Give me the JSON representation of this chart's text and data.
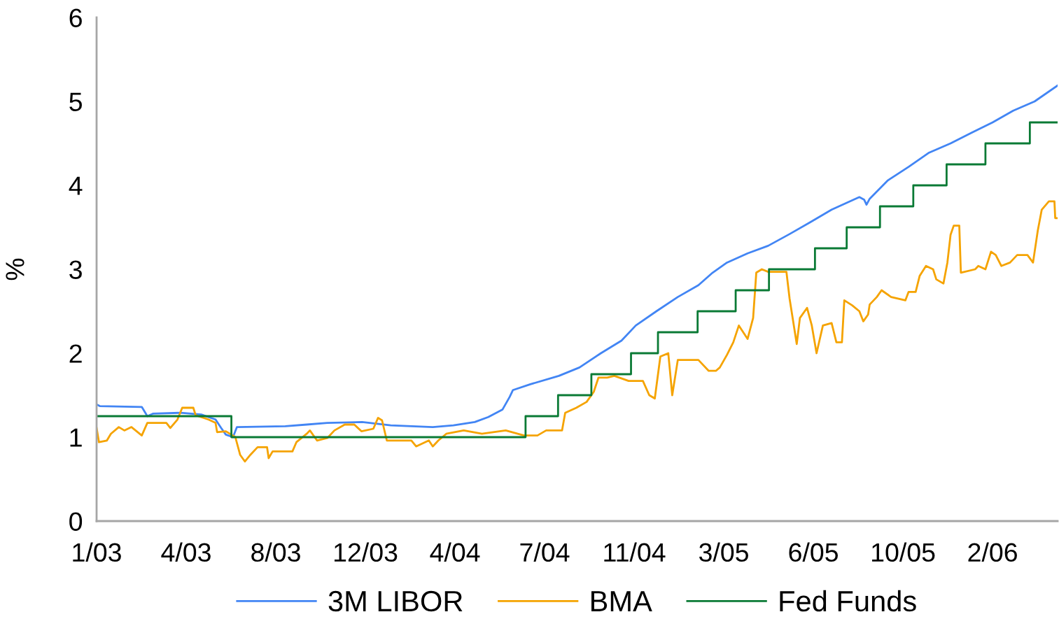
{
  "chart_data": {
    "type": "line",
    "ylabel": "%",
    "xlim": [
      "2003-01-06",
      "2006-05-02"
    ],
    "xticks": [
      {
        "value": "2003-01-06",
        "label": "1/03"
      },
      {
        "value": "2003-04-29",
        "label": "4/03"
      },
      {
        "value": "2003-08-20",
        "label": "8/03"
      },
      {
        "value": "2003-12-11",
        "label": "12/03"
      },
      {
        "value": "2004-04-02",
        "label": "4/04"
      },
      {
        "value": "2004-07-24",
        "label": "7/04"
      },
      {
        "value": "2004-11-14",
        "label": "11/04"
      },
      {
        "value": "2005-03-07",
        "label": "3/05"
      },
      {
        "value": "2005-06-28",
        "label": "6/05"
      },
      {
        "value": "2005-10-19",
        "label": "10/05"
      },
      {
        "value": "2006-02-09",
        "label": "2/06"
      }
    ],
    "ylim": [
      0,
      6
    ],
    "yticks": [
      0,
      1,
      2,
      3,
      4,
      5,
      6
    ],
    "grid": false,
    "legend": "bottom",
    "series": [
      {
        "name": "3M LIBOR",
        "color": "#4285f4",
        "x": [
          "2003-01-06",
          "2003-01-10",
          "2003-03-04",
          "2003-03-11",
          "2003-03-18",
          "2003-04-22",
          "2003-05-18",
          "2003-06-05",
          "2003-06-12",
          "2003-06-18",
          "2003-06-27",
          "2003-07-02",
          "2003-09-01",
          "2003-09-28",
          "2003-10-24",
          "2003-12-07",
          "2004-01-12",
          "2004-03-05",
          "2004-03-31",
          "2004-04-27",
          "2004-05-14",
          "2004-06-01",
          "2004-06-10",
          "2004-06-14",
          "2004-07-06",
          "2004-08-11",
          "2004-09-06",
          "2004-10-03",
          "2004-10-29",
          "2004-11-16",
          "2004-12-12",
          "2005-01-08",
          "2005-02-03",
          "2005-02-21",
          "2005-03-11",
          "2005-04-06",
          "2005-05-02",
          "2005-05-29",
          "2005-06-24",
          "2005-07-21",
          "2005-08-25",
          "2005-08-31",
          "2005-09-03",
          "2005-09-07",
          "2005-09-30",
          "2005-10-26",
          "2005-11-21",
          "2005-12-18",
          "2006-01-14",
          "2006-02-09",
          "2006-03-07",
          "2006-04-03",
          "2006-05-02"
        ],
        "values": [
          1.39,
          1.37,
          1.36,
          1.25,
          1.28,
          1.29,
          1.27,
          1.21,
          1.11,
          1.03,
          1.0,
          1.12,
          1.13,
          1.15,
          1.17,
          1.18,
          1.14,
          1.12,
          1.14,
          1.18,
          1.24,
          1.33,
          1.48,
          1.56,
          1.63,
          1.73,
          1.83,
          2.0,
          2.15,
          2.33,
          2.5,
          2.67,
          2.81,
          2.96,
          3.08,
          3.19,
          3.28,
          3.42,
          3.56,
          3.71,
          3.86,
          3.83,
          3.77,
          3.84,
          4.06,
          4.22,
          4.39,
          4.5,
          4.63,
          4.75,
          4.89,
          5.0,
          5.19
        ]
      },
      {
        "name": "BMA",
        "color": "#f5a300",
        "x": [
          "2003-01-06",
          "2003-01-09",
          "2003-01-19",
          "2003-01-24",
          "2003-02-03",
          "2003-02-10",
          "2003-02-19",
          "2003-03-04",
          "2003-03-11",
          "2003-04-04",
          "2003-04-09",
          "2003-04-18",
          "2003-04-24",
          "2003-05-08",
          "2003-05-11",
          "2003-05-27",
          "2003-06-05",
          "2003-06-07",
          "2003-06-18",
          "2003-06-30",
          "2003-07-06",
          "2003-07-12",
          "2003-07-19",
          "2003-07-28",
          "2003-08-09",
          "2003-08-11",
          "2003-08-16",
          "2003-09-10",
          "2003-09-15",
          "2003-09-28",
          "2003-10-02",
          "2003-10-11",
          "2003-10-24",
          "2003-11-02",
          "2003-11-15",
          "2003-11-27",
          "2003-12-06",
          "2003-12-21",
          "2003-12-27",
          "2004-01-01",
          "2004-01-07",
          "2004-02-07",
          "2004-02-13",
          "2004-02-29",
          "2004-03-05",
          "2004-03-12",
          "2004-03-22",
          "2004-04-13",
          "2004-05-06",
          "2004-06-05",
          "2004-06-28",
          "2004-07-15",
          "2004-07-26",
          "2004-08-15",
          "2004-08-19",
          "2004-09-02",
          "2004-09-15",
          "2004-09-24",
          "2004-09-30",
          "2004-10-11",
          "2004-10-20",
          "2004-11-07",
          "2004-11-25",
          "2004-12-03",
          "2004-12-10",
          "2004-12-17",
          "2004-12-27",
          "2005-01-01",
          "2005-01-08",
          "2005-01-25",
          "2005-02-03",
          "2005-02-16",
          "2005-02-25",
          "2005-03-02",
          "2005-03-11",
          "2005-03-19",
          "2005-03-26",
          "2005-04-06",
          "2005-04-13",
          "2005-04-17",
          "2005-04-24",
          "2005-05-02",
          "2005-05-25",
          "2005-05-29",
          "2005-06-07",
          "2005-06-11",
          "2005-06-20",
          "2005-06-26",
          "2005-07-02",
          "2005-07-10",
          "2005-07-21",
          "2005-07-27",
          "2005-08-03",
          "2005-08-06",
          "2005-08-16",
          "2005-08-25",
          "2005-08-30",
          "2005-09-05",
          "2005-09-07",
          "2005-09-16",
          "2005-09-22",
          "2005-10-04",
          "2005-10-22",
          "2005-10-26",
          "2005-11-04",
          "2005-11-09",
          "2005-11-17",
          "2005-11-26",
          "2005-11-30",
          "2005-12-09",
          "2005-12-14",
          "2005-12-18",
          "2005-12-22",
          "2005-12-29",
          "2005-12-31",
          "2006-01-18",
          "2006-01-22",
          "2006-01-31",
          "2006-02-07",
          "2006-02-13",
          "2006-02-20",
          "2006-03-03",
          "2006-03-12",
          "2006-03-25",
          "2006-04-01",
          "2006-04-07",
          "2006-04-12",
          "2006-04-21",
          "2006-04-28",
          "2006-04-29",
          "2006-05-02"
        ],
        "values": [
          1.11,
          0.94,
          0.96,
          1.04,
          1.12,
          1.08,
          1.12,
          1.02,
          1.17,
          1.17,
          1.11,
          1.21,
          1.35,
          1.35,
          1.26,
          1.21,
          1.17,
          1.06,
          1.07,
          1.0,
          0.79,
          0.71,
          0.79,
          0.88,
          0.88,
          0.75,
          0.83,
          0.83,
          0.94,
          1.04,
          1.08,
          0.96,
          0.99,
          1.08,
          1.15,
          1.15,
          1.07,
          1.1,
          1.23,
          1.2,
          0.96,
          0.96,
          0.89,
          0.96,
          0.89,
          0.96,
          1.04,
          1.08,
          1.04,
          1.08,
          1.02,
          1.02,
          1.08,
          1.08,
          1.29,
          1.35,
          1.42,
          1.54,
          1.71,
          1.71,
          1.73,
          1.67,
          1.67,
          1.5,
          1.46,
          1.96,
          2.0,
          1.5,
          1.92,
          1.92,
          1.92,
          1.79,
          1.79,
          1.83,
          1.98,
          2.13,
          2.33,
          2.17,
          2.42,
          2.96,
          3.0,
          2.97,
          2.97,
          2.65,
          2.11,
          2.42,
          2.54,
          2.33,
          2.0,
          2.33,
          2.36,
          2.13,
          2.13,
          2.63,
          2.57,
          2.5,
          2.38,
          2.46,
          2.58,
          2.67,
          2.75,
          2.67,
          2.63,
          2.73,
          2.73,
          2.92,
          3.04,
          3.0,
          2.88,
          2.83,
          3.08,
          3.41,
          3.52,
          3.52,
          2.96,
          3.0,
          3.04,
          3.0,
          3.21,
          3.17,
          3.04,
          3.08,
          3.17,
          3.17,
          3.08,
          3.46,
          3.71,
          3.81,
          3.81,
          3.61,
          3.61
        ]
      },
      {
        "name": "Fed Funds",
        "color": "#0a7a35",
        "type": "step",
        "x": [
          "2003-01-06",
          "2003-06-25",
          "2004-06-30",
          "2004-08-10",
          "2004-09-21",
          "2004-11-10",
          "2004-12-14",
          "2005-02-02",
          "2005-03-22",
          "2005-05-03",
          "2005-06-30",
          "2005-08-09",
          "2005-09-20",
          "2005-11-01",
          "2005-12-13",
          "2006-01-31",
          "2006-03-28",
          "2006-05-02"
        ],
        "values": [
          1.25,
          1.0,
          1.25,
          1.5,
          1.75,
          2.0,
          2.25,
          2.5,
          2.75,
          3.0,
          3.25,
          3.5,
          3.75,
          4.0,
          4.25,
          4.5,
          4.75,
          4.75
        ]
      }
    ]
  }
}
